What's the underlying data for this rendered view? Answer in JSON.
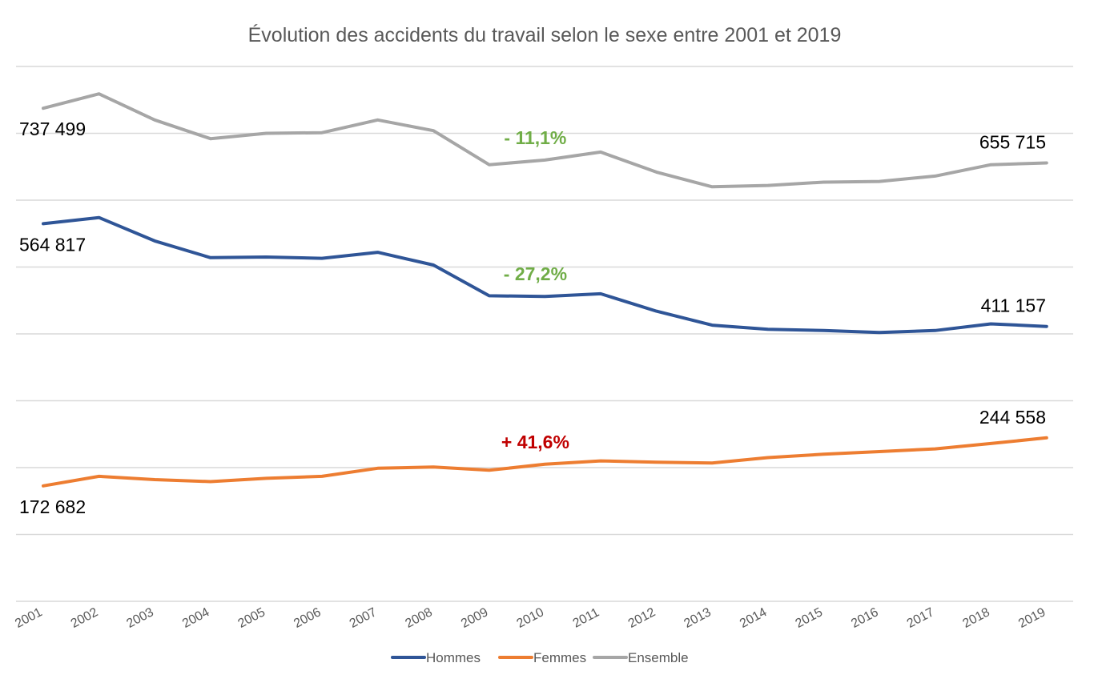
{
  "chart_data": {
    "type": "line",
    "title": "Évolution des accidents du travail selon le sexe entre 2001 et 2019",
    "xlabel": "",
    "ylabel": "",
    "grid": true,
    "ylim": [
      0,
      820000
    ],
    "ytick_step": 100000,
    "legend_position": "bottom-center",
    "categories": [
      "2001",
      "2002",
      "2003",
      "2004",
      "2005",
      "2006",
      "2007",
      "2008",
      "2009",
      "2010",
      "2011",
      "2012",
      "2013",
      "2014",
      "2015",
      "2016",
      "2017",
      "2018",
      "2019"
    ],
    "series": [
      {
        "name": "Hommes",
        "color": "#2f5597",
        "values": [
          564817,
          574000,
          539000,
          514000,
          515000,
          513000,
          522000,
          503000,
          457000,
          456000,
          460000,
          434000,
          413000,
          407000,
          405000,
          402000,
          405000,
          415000,
          411157
        ]
      },
      {
        "name": "Femmes",
        "color": "#ed7d31",
        "values": [
          172682,
          187000,
          182000,
          179000,
          184000,
          187000,
          199000,
          201000,
          196000,
          205000,
          210000,
          208000,
          207000,
          215000,
          220000,
          224000,
          228000,
          236000,
          244558
        ]
      },
      {
        "name": "Ensemble",
        "color": "#a6a6a6",
        "values": [
          737499,
          759000,
          720000,
          692000,
          700000,
          701000,
          720000,
          704000,
          653000,
          660000,
          672000,
          642000,
          620000,
          622000,
          627000,
          628000,
          636000,
          653000,
          655715
        ]
      }
    ],
    "data_labels": [
      {
        "series": "Ensemble",
        "index": 0,
        "text": "737 499"
      },
      {
        "series": "Ensemble",
        "index": 18,
        "text": "655 715"
      },
      {
        "series": "Hommes",
        "index": 0,
        "text": "564 817"
      },
      {
        "series": "Hommes",
        "index": 18,
        "text": "411 157"
      },
      {
        "series": "Femmes",
        "index": 0,
        "text": "172 682"
      },
      {
        "series": "Femmes",
        "index": 18,
        "text": "244 558"
      }
    ],
    "annotations": [
      {
        "series": "Ensemble",
        "text": "- 11,1%",
        "color": "#70ad47"
      },
      {
        "series": "Hommes",
        "text": "- 27,2%",
        "color": "#70ad47"
      },
      {
        "series": "Femmes",
        "text": "+ 41,6%",
        "color": "#c00000"
      }
    ]
  }
}
